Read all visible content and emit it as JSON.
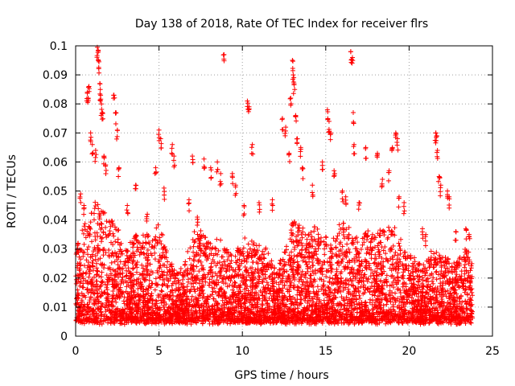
{
  "chart_data": {
    "type": "scatter",
    "title": "Day 138 of 2018, Rate Of TEC Index for receiver flrs",
    "xlabel": "GPS time / hours",
    "ylabel": "ROTI / TECUs",
    "xlim": [
      0,
      25
    ],
    "ylim": [
      0,
      0.1
    ],
    "xticks": [
      0,
      5,
      10,
      15,
      20,
      25
    ],
    "xtick_labels": [
      "0",
      "5",
      "10",
      "15",
      "20",
      "25"
    ],
    "yticks": [
      0,
      0.01,
      0.02,
      0.03,
      0.04,
      0.05,
      0.06,
      0.07,
      0.08,
      0.09,
      0.1
    ],
    "ytick_labels": [
      "0",
      "0.01",
      "0.02",
      "0.03",
      "0.04",
      "0.05",
      "0.06",
      "0.07",
      "0.08",
      "0.09",
      "0.1"
    ],
    "grid": true,
    "marker": "plus",
    "marker_color": "#ff0000",
    "series": [
      {
        "name": "ROTI",
        "x_range_hours": [
          0,
          23.8
        ],
        "typical_range": [
          0.005,
          0.03
        ],
        "baseline_floor": 0.005,
        "notable_points": [
          {
            "x": 0.15,
            "y": 0.032
          },
          {
            "x": 0.3,
            "y": 0.049
          },
          {
            "x": 0.5,
            "y": 0.045
          },
          {
            "x": 0.7,
            "y": 0.084
          },
          {
            "x": 0.75,
            "y": 0.082
          },
          {
            "x": 0.8,
            "y": 0.086
          },
          {
            "x": 0.9,
            "y": 0.07
          },
          {
            "x": 1.0,
            "y": 0.066
          },
          {
            "x": 1.2,
            "y": 0.064
          },
          {
            "x": 1.3,
            "y": 0.0995
          },
          {
            "x": 1.35,
            "y": 0.0985
          },
          {
            "x": 1.4,
            "y": 0.0945
          },
          {
            "x": 1.45,
            "y": 0.087
          },
          {
            "x": 1.5,
            "y": 0.083
          },
          {
            "x": 1.55,
            "y": 0.08
          },
          {
            "x": 1.6,
            "y": 0.077
          },
          {
            "x": 1.7,
            "y": 0.062
          },
          {
            "x": 1.8,
            "y": 0.059
          },
          {
            "x": 2.3,
            "y": 0.083
          },
          {
            "x": 2.4,
            "y": 0.077
          },
          {
            "x": 2.5,
            "y": 0.071
          },
          {
            "x": 2.6,
            "y": 0.058
          },
          {
            "x": 3.1,
            "y": 0.045
          },
          {
            "x": 3.6,
            "y": 0.052
          },
          {
            "x": 4.3,
            "y": 0.042
          },
          {
            "x": 4.8,
            "y": 0.058
          },
          {
            "x": 5.0,
            "y": 0.071
          },
          {
            "x": 5.1,
            "y": 0.068
          },
          {
            "x": 5.3,
            "y": 0.051
          },
          {
            "x": 5.8,
            "y": 0.066
          },
          {
            "x": 5.9,
            "y": 0.062
          },
          {
            "x": 6.8,
            "y": 0.047
          },
          {
            "x": 7.0,
            "y": 0.062
          },
          {
            "x": 7.3,
            "y": 0.041
          },
          {
            "x": 7.7,
            "y": 0.061
          },
          {
            "x": 8.1,
            "y": 0.058
          },
          {
            "x": 8.5,
            "y": 0.06
          },
          {
            "x": 8.7,
            "y": 0.056
          },
          {
            "x": 8.9,
            "y": 0.097
          },
          {
            "x": 9.4,
            "y": 0.056
          },
          {
            "x": 9.6,
            "y": 0.052
          },
          {
            "x": 10.1,
            "y": 0.045
          },
          {
            "x": 10.3,
            "y": 0.081
          },
          {
            "x": 10.4,
            "y": 0.079
          },
          {
            "x": 10.6,
            "y": 0.066
          },
          {
            "x": 11.0,
            "y": 0.046
          },
          {
            "x": 11.8,
            "y": 0.047
          },
          {
            "x": 12.4,
            "y": 0.075
          },
          {
            "x": 12.6,
            "y": 0.072
          },
          {
            "x": 12.8,
            "y": 0.063
          },
          {
            "x": 12.9,
            "y": 0.082
          },
          {
            "x": 13.0,
            "y": 0.095
          },
          {
            "x": 13.05,
            "y": 0.09
          },
          {
            "x": 13.1,
            "y": 0.087
          },
          {
            "x": 13.2,
            "y": 0.076
          },
          {
            "x": 13.3,
            "y": 0.068
          },
          {
            "x": 13.5,
            "y": 0.065
          },
          {
            "x": 13.6,
            "y": 0.058
          },
          {
            "x": 14.2,
            "y": 0.052
          },
          {
            "x": 14.8,
            "y": 0.06
          },
          {
            "x": 15.1,
            "y": 0.078
          },
          {
            "x": 15.2,
            "y": 0.074
          },
          {
            "x": 15.3,
            "y": 0.07
          },
          {
            "x": 15.5,
            "y": 0.057
          },
          {
            "x": 16.0,
            "y": 0.05
          },
          {
            "x": 16.2,
            "y": 0.048
          },
          {
            "x": 16.5,
            "y": 0.098
          },
          {
            "x": 16.6,
            "y": 0.096
          },
          {
            "x": 16.65,
            "y": 0.077
          },
          {
            "x": 16.7,
            "y": 0.066
          },
          {
            "x": 17.0,
            "y": 0.046
          },
          {
            "x": 17.4,
            "y": 0.065
          },
          {
            "x": 18.1,
            "y": 0.063
          },
          {
            "x": 18.4,
            "y": 0.054
          },
          {
            "x": 18.8,
            "y": 0.057
          },
          {
            "x": 19.0,
            "y": 0.065
          },
          {
            "x": 19.2,
            "y": 0.07
          },
          {
            "x": 19.3,
            "y": 0.068
          },
          {
            "x": 19.4,
            "y": 0.048
          },
          {
            "x": 19.7,
            "y": 0.046
          },
          {
            "x": 20.8,
            "y": 0.037
          },
          {
            "x": 21.0,
            "y": 0.035
          },
          {
            "x": 21.6,
            "y": 0.07
          },
          {
            "x": 21.65,
            "y": 0.069
          },
          {
            "x": 21.7,
            "y": 0.064
          },
          {
            "x": 21.8,
            "y": 0.055
          },
          {
            "x": 21.9,
            "y": 0.052
          },
          {
            "x": 22.3,
            "y": 0.05
          },
          {
            "x": 22.4,
            "y": 0.048
          },
          {
            "x": 22.8,
            "y": 0.036
          },
          {
            "x": 23.4,
            "y": 0.037
          },
          {
            "x": 23.6,
            "y": 0.035
          }
        ],
        "envelope": [
          {
            "x": 0.0,
            "y": 0.028
          },
          {
            "x": 0.5,
            "y": 0.038
          },
          {
            "x": 1.0,
            "y": 0.048
          },
          {
            "x": 1.5,
            "y": 0.045
          },
          {
            "x": 2.0,
            "y": 0.04
          },
          {
            "x": 2.5,
            "y": 0.038
          },
          {
            "x": 3.0,
            "y": 0.03
          },
          {
            "x": 3.5,
            "y": 0.035
          },
          {
            "x": 4.0,
            "y": 0.036
          },
          {
            "x": 4.5,
            "y": 0.034
          },
          {
            "x": 5.0,
            "y": 0.04
          },
          {
            "x": 5.5,
            "y": 0.028
          },
          {
            "x": 6.0,
            "y": 0.022
          },
          {
            "x": 6.5,
            "y": 0.024
          },
          {
            "x": 7.0,
            "y": 0.035
          },
          {
            "x": 7.5,
            "y": 0.036
          },
          {
            "x": 8.0,
            "y": 0.033
          },
          {
            "x": 8.5,
            "y": 0.034
          },
          {
            "x": 9.0,
            "y": 0.03
          },
          {
            "x": 9.5,
            "y": 0.029
          },
          {
            "x": 10.0,
            "y": 0.034
          },
          {
            "x": 10.5,
            "y": 0.033
          },
          {
            "x": 11.0,
            "y": 0.032
          },
          {
            "x": 11.5,
            "y": 0.03
          },
          {
            "x": 12.0,
            "y": 0.022
          },
          {
            "x": 12.5,
            "y": 0.028
          },
          {
            "x": 13.0,
            "y": 0.04
          },
          {
            "x": 13.5,
            "y": 0.038
          },
          {
            "x": 14.0,
            "y": 0.036
          },
          {
            "x": 14.5,
            "y": 0.038
          },
          {
            "x": 15.0,
            "y": 0.036
          },
          {
            "x": 15.5,
            "y": 0.034
          },
          {
            "x": 16.0,
            "y": 0.04
          },
          {
            "x": 16.5,
            "y": 0.037
          },
          {
            "x": 17.0,
            "y": 0.034
          },
          {
            "x": 17.5,
            "y": 0.036
          },
          {
            "x": 18.0,
            "y": 0.035
          },
          {
            "x": 18.5,
            "y": 0.038
          },
          {
            "x": 19.0,
            "y": 0.038
          },
          {
            "x": 19.5,
            "y": 0.034
          },
          {
            "x": 20.0,
            "y": 0.028
          },
          {
            "x": 20.5,
            "y": 0.026
          },
          {
            "x": 21.0,
            "y": 0.026
          },
          {
            "x": 21.5,
            "y": 0.03
          },
          {
            "x": 22.0,
            "y": 0.028
          },
          {
            "x": 22.5,
            "y": 0.026
          },
          {
            "x": 23.0,
            "y": 0.028
          },
          {
            "x": 23.5,
            "y": 0.03
          },
          {
            "x": 23.8,
            "y": 0.026
          }
        ]
      }
    ]
  }
}
